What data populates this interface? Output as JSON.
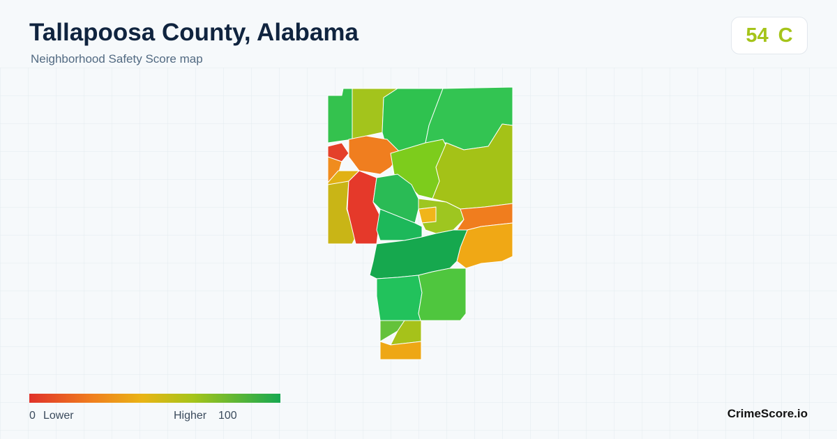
{
  "header": {
    "title": "Tallapoosa County, Alabama",
    "subtitle": "Neighborhood Safety Score map"
  },
  "score": {
    "value": 54,
    "grade": "C",
    "color": "#a5c41a"
  },
  "legend": {
    "min": 0,
    "min_label": "Lower",
    "max_label": "Higher",
    "max": 100
  },
  "brand": "CrimeScore.io"
}
